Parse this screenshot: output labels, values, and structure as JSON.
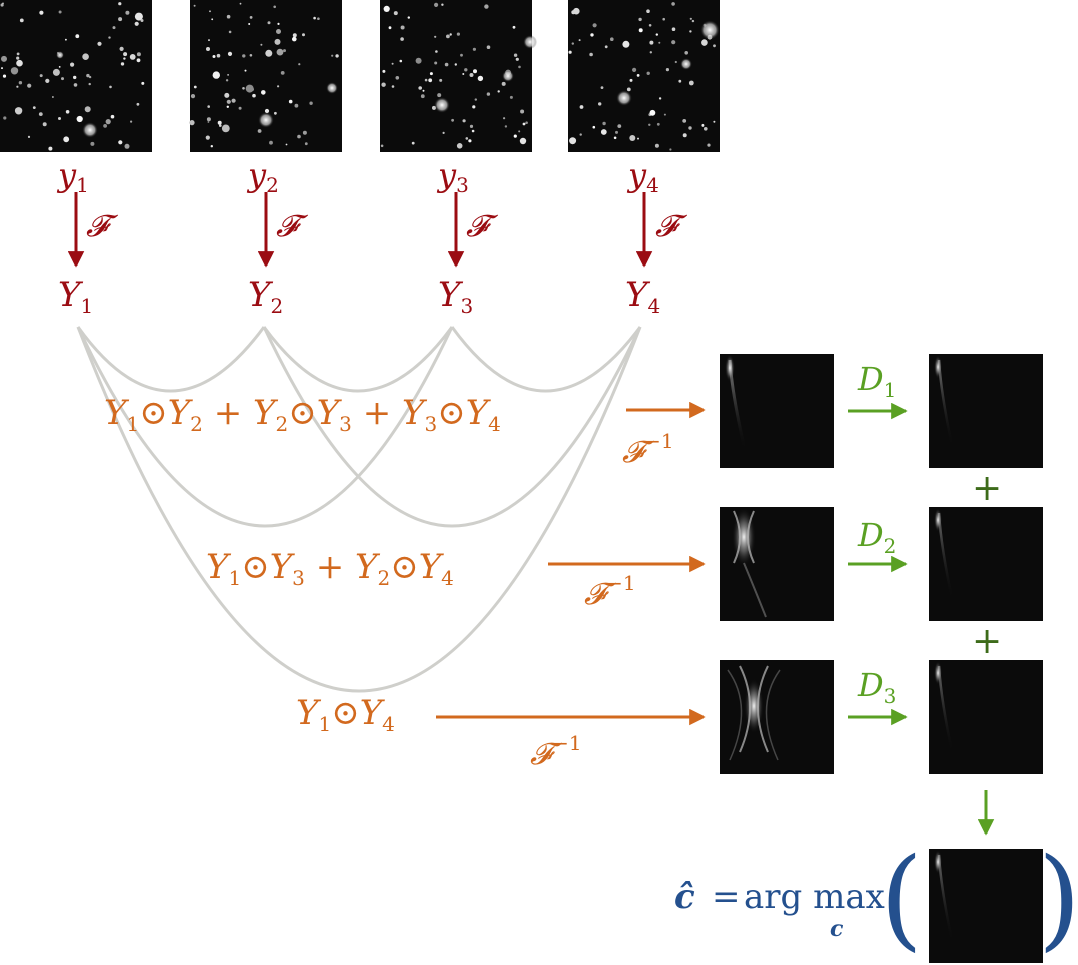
{
  "colors": {
    "input": "#9b0c12",
    "product": "#d2691e",
    "filter": "#5aa023",
    "result": "#24508e",
    "curve": "#cfcfcb",
    "image_bg": "#0b0b0b"
  },
  "inputs": [
    {
      "y_sym": "y",
      "Y_sym": "Y",
      "index": "1",
      "transform": "𝓕"
    },
    {
      "y_sym": "y",
      "Y_sym": "Y",
      "index": "2",
      "transform": "𝓕"
    },
    {
      "y_sym": "y",
      "Y_sym": "Y",
      "index": "3",
      "transform": "𝓕"
    },
    {
      "y_sym": "y",
      "Y_sym": "Y",
      "index": "4",
      "transform": "𝓕"
    }
  ],
  "products": [
    {
      "terms": [
        [
          "1",
          "2"
        ],
        [
          "2",
          "3"
        ],
        [
          "3",
          "4"
        ]
      ],
      "op": "⊙",
      "plus": "+",
      "inverse": "𝓕",
      "inverse_exp": "−1",
      "filter": "D",
      "filter_index": "1"
    },
    {
      "terms": [
        [
          "1",
          "3"
        ],
        [
          "2",
          "4"
        ]
      ],
      "op": "⊙",
      "plus": "+",
      "inverse": "𝓕",
      "inverse_exp": "−1",
      "filter": "D",
      "filter_index": "2"
    },
    {
      "terms": [
        [
          "1",
          "4"
        ]
      ],
      "op": "⊙",
      "plus": "+",
      "inverse": "𝓕",
      "inverse_exp": "−1",
      "filter": "D",
      "filter_index": "3"
    }
  ],
  "sum_symbols": [
    "+",
    "+"
  ],
  "result": {
    "lhs": "ĉ",
    "equals": "=",
    "argmax": "arg max",
    "argmax_sub": "c",
    "open_paren": "(",
    "close_paren": ")"
  }
}
